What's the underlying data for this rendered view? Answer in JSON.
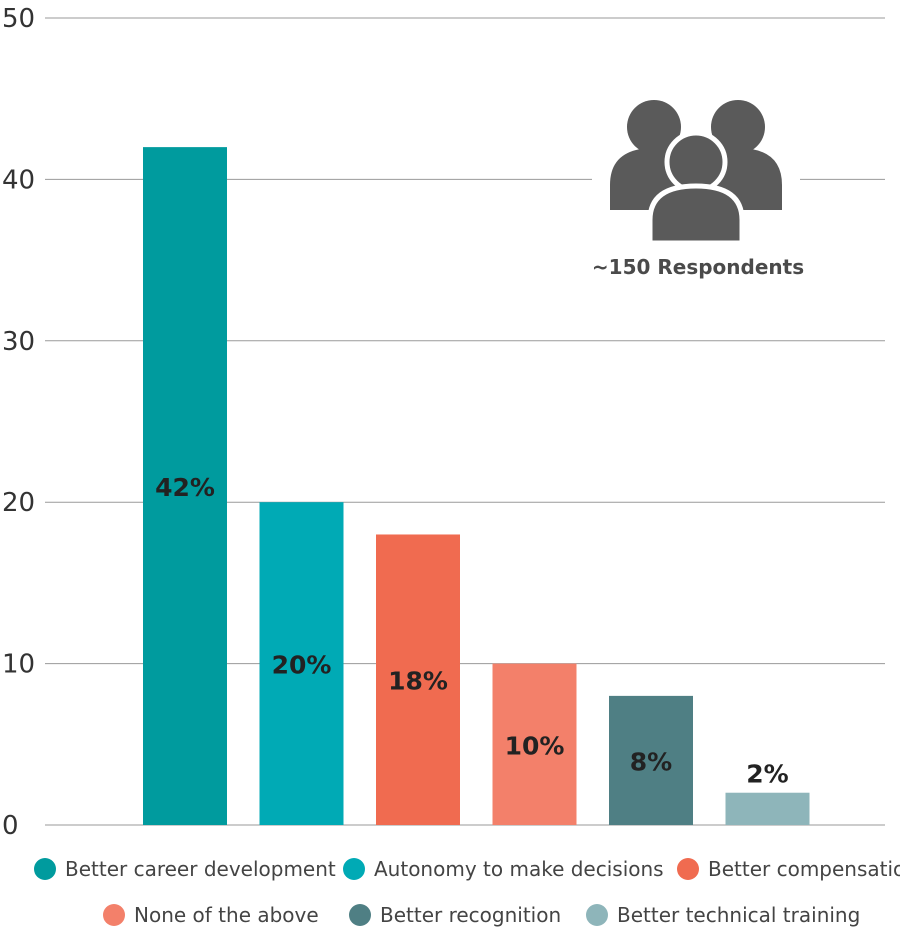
{
  "chart_data": {
    "type": "bar",
    "title": "",
    "xlabel": "",
    "ylabel": "",
    "ylim": [
      0,
      50
    ],
    "yticks": [
      0,
      10,
      20,
      30,
      40,
      50
    ],
    "grid": true,
    "categories": [
      "Better career development",
      "Autonomy to make decisions",
      "Better compensation",
      "None of the above",
      "Better recognition",
      "Better technical training"
    ],
    "values": [
      42,
      20,
      18,
      10,
      8,
      2
    ],
    "data_labels": [
      "42%",
      "20%",
      "18%",
      "10%",
      "8%",
      "2%"
    ],
    "colors": [
      "#009b9e",
      "#00aab5",
      "#f06b50",
      "#f3806a",
      "#4f7f84",
      "#8eb5ba"
    ],
    "annotation": {
      "text": "~150 Respondents",
      "icon": "people-group-icon",
      "icon_color": "#5a5a5a"
    },
    "legend": {
      "placement": "bottom",
      "entries": [
        "Better career development",
        "Autonomy to make decisions",
        "Better compensation",
        "None of the above",
        "Better recognition",
        "Better technical training"
      ]
    }
  }
}
